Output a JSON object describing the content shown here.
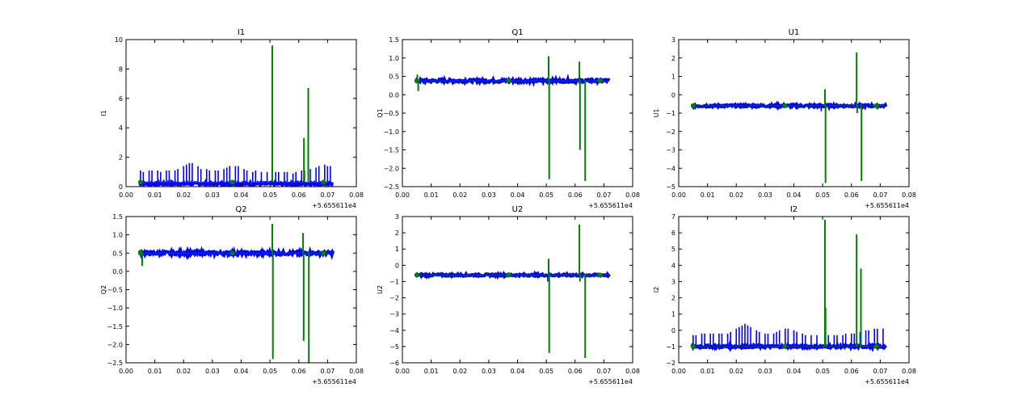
{
  "figure": {
    "background": "#ffffff",
    "blue": "#0000ff",
    "green": "#008000"
  },
  "chart_data": [
    {
      "type": "line",
      "title": "I1",
      "ylabel": "I1",
      "xlabel": "",
      "x_offset_label": "+5.655611e4",
      "xlim": [
        0.0,
        0.08
      ],
      "ylim": [
        0,
        10
      ],
      "xticks": [
        "0.00",
        "0.01",
        "0.02",
        "0.03",
        "0.04",
        "0.05",
        "0.06",
        "0.07",
        "0.08"
      ],
      "yticks": [
        "0",
        "2",
        "4",
        "6",
        "8",
        "10"
      ],
      "series": [
        {
          "color": "#0000ff",
          "x": [
            0.0045,
            0.072
          ],
          "y": [
            0.2,
            0.3
          ],
          "spikes": [
            [
              0.005,
              1.1
            ],
            [
              0.006,
              1.0
            ],
            [
              0.008,
              1.1
            ],
            [
              0.009,
              1.1
            ],
            [
              0.011,
              1.1
            ],
            [
              0.012,
              1.0
            ],
            [
              0.014,
              1.1
            ],
            [
              0.015,
              1.1
            ],
            [
              0.017,
              1.1
            ],
            [
              0.018,
              1.2
            ],
            [
              0.02,
              1.4
            ],
            [
              0.021,
              1.5
            ],
            [
              0.022,
              1.6
            ],
            [
              0.023,
              1.6
            ],
            [
              0.025,
              1.4
            ],
            [
              0.026,
              1.2
            ],
            [
              0.028,
              1.2
            ],
            [
              0.029,
              1.1
            ],
            [
              0.031,
              1.1
            ],
            [
              0.032,
              1.1
            ],
            [
              0.034,
              1.2
            ],
            [
              0.035,
              1.3
            ],
            [
              0.036,
              1.4
            ],
            [
              0.038,
              1.4
            ],
            [
              0.039,
              1.4
            ],
            [
              0.041,
              1.2
            ],
            [
              0.042,
              1.1
            ],
            [
              0.044,
              1.0
            ],
            [
              0.045,
              1.1
            ],
            [
              0.047,
              1.0
            ],
            [
              0.049,
              1.0
            ],
            [
              0.052,
              1.0
            ],
            [
              0.053,
              1.0
            ],
            [
              0.055,
              1.0
            ],
            [
              0.056,
              1.0
            ],
            [
              0.058,
              0.9
            ],
            [
              0.059,
              1.0
            ],
            [
              0.061,
              1.1
            ],
            [
              0.062,
              1.1
            ],
            [
              0.064,
              1.2
            ],
            [
              0.066,
              1.3
            ],
            [
              0.067,
              1.4
            ],
            [
              0.069,
              1.5
            ],
            [
              0.07,
              1.4
            ],
            [
              0.071,
              1.4
            ]
          ]
        },
        {
          "color": "#008000",
          "x": [
            0.0045,
            0.072
          ],
          "y": [
            0.3,
            0.3
          ],
          "spikes": [
            [
              0.0508,
              9.6
            ],
            [
              0.0618,
              3.3
            ],
            [
              0.0633,
              6.7
            ]
          ]
        }
      ]
    },
    {
      "type": "line",
      "title": "Q1",
      "ylabel": "Q1",
      "xlabel": "",
      "x_offset_label": "+5.655611e4",
      "xlim": [
        0.0,
        0.08
      ],
      "ylim": [
        -2.5,
        1.5
      ],
      "xticks": [
        "0.00",
        "0.01",
        "0.02",
        "0.03",
        "0.04",
        "0.05",
        "0.06",
        "0.07",
        "0.08"
      ],
      "yticks": [
        "−2.5",
        "−2.0",
        "−1.5",
        "−1.0",
        "−0.5",
        "0.0",
        "0.5",
        "1.0",
        "1.5"
      ],
      "series": [
        {
          "color": "#0000ff",
          "x": [
            0.0045,
            0.072
          ],
          "y": [
            0.38,
            0.38
          ],
          "band": 0.08,
          "spikes": []
        },
        {
          "color": "#008000",
          "x": [
            0.0045,
            0.072
          ],
          "y": [
            0.38,
            0.38
          ],
          "spikes": [
            [
              0.0052,
              0.55
            ],
            [
              0.0055,
              0.1
            ],
            [
              0.0508,
              1.05
            ],
            [
              0.051,
              -2.3
            ],
            [
              0.0615,
              0.9
            ],
            [
              0.0617,
              -1.5
            ],
            [
              0.0633,
              0.4
            ],
            [
              0.0635,
              -2.35
            ]
          ]
        }
      ]
    },
    {
      "type": "line",
      "title": "U1",
      "ylabel": "U1",
      "xlabel": "",
      "x_offset_label": "+5.655611e4",
      "xlim": [
        0.0,
        0.08
      ],
      "ylim": [
        -5,
        3
      ],
      "xticks": [
        "0.00",
        "0.01",
        "0.02",
        "0.03",
        "0.04",
        "0.05",
        "0.06",
        "0.07",
        "0.08"
      ],
      "yticks": [
        "−5",
        "−4",
        "−3",
        "−2",
        "−1",
        "0",
        "1",
        "2",
        "3"
      ],
      "series": [
        {
          "color": "#0000ff",
          "x": [
            0.0045,
            0.072
          ],
          "y": [
            -0.6,
            -0.6
          ],
          "band": 0.12,
          "spikes": [
            [
              0.0495,
              -0.9
            ]
          ]
        },
        {
          "color": "#008000",
          "x": [
            0.0045,
            0.072
          ],
          "y": [
            -0.6,
            -0.6
          ],
          "spikes": [
            [
              0.0508,
              0.3
            ],
            [
              0.051,
              -4.8
            ],
            [
              0.0618,
              2.3
            ],
            [
              0.062,
              -1.0
            ],
            [
              0.0633,
              -0.5
            ],
            [
              0.0635,
              -4.7
            ]
          ]
        }
      ]
    },
    {
      "type": "line",
      "title": "Q2",
      "ylabel": "Q2",
      "xlabel": "",
      "x_offset_label": "+5.655611e4",
      "xlim": [
        0.0,
        0.08
      ],
      "ylim": [
        -2.5,
        1.5
      ],
      "xticks": [
        "0.00",
        "0.01",
        "0.02",
        "0.03",
        "0.04",
        "0.05",
        "0.06",
        "0.07",
        "0.08"
      ],
      "yticks": [
        "−2.5",
        "−2.0",
        "−1.5",
        "−1.0",
        "−0.5",
        "0.0",
        "0.5",
        "1.0",
        "1.5"
      ],
      "series": [
        {
          "color": "#0000ff",
          "x": [
            0.0045,
            0.072
          ],
          "y": [
            0.5,
            0.5
          ],
          "band": 0.09,
          "spikes": []
        },
        {
          "color": "#008000",
          "x": [
            0.0045,
            0.072
          ],
          "y": [
            0.5,
            0.5
          ],
          "spikes": [
            [
              0.0053,
              0.6
            ],
            [
              0.0056,
              0.15
            ],
            [
              0.0508,
              1.3
            ],
            [
              0.051,
              -2.4
            ],
            [
              0.0615,
              1.05
            ],
            [
              0.0617,
              -1.9
            ],
            [
              0.0633,
              0.55
            ],
            [
              0.0635,
              -2.5
            ]
          ]
        }
      ]
    },
    {
      "type": "line",
      "title": "U2",
      "ylabel": "U2",
      "xlabel": "",
      "x_offset_label": "+5.655611e4",
      "xlim": [
        0.0,
        0.08
      ],
      "ylim": [
        -6,
        3
      ],
      "xticks": [
        "0.00",
        "0.01",
        "0.02",
        "0.03",
        "0.04",
        "0.05",
        "0.06",
        "0.07",
        "0.08"
      ],
      "yticks": [
        "−6",
        "−5",
        "−4",
        "−3",
        "−2",
        "−1",
        "0",
        "1",
        "2",
        "3"
      ],
      "series": [
        {
          "color": "#0000ff",
          "x": [
            0.0045,
            0.072
          ],
          "y": [
            -0.6,
            -0.6
          ],
          "band": 0.12,
          "spikes": [
            [
              0.0505,
              -1.0
            ]
          ]
        },
        {
          "color": "#008000",
          "x": [
            0.0045,
            0.072
          ],
          "y": [
            -0.6,
            -0.6
          ],
          "spikes": [
            [
              0.0508,
              0.4
            ],
            [
              0.051,
              -5.4
            ],
            [
              0.0615,
              2.5
            ],
            [
              0.0617,
              -1.0
            ],
            [
              0.0633,
              -0.5
            ],
            [
              0.0635,
              -5.7
            ]
          ]
        }
      ]
    },
    {
      "type": "line",
      "title": "I2",
      "ylabel": "I2",
      "xlabel": "",
      "x_offset_label": "+5.655611e4",
      "xlim": [
        0.0,
        0.08
      ],
      "ylim": [
        -2,
        7
      ],
      "xticks": [
        "0.00",
        "0.01",
        "0.02",
        "0.03",
        "0.04",
        "0.05",
        "0.06",
        "0.07",
        "0.08"
      ],
      "yticks": [
        "−2",
        "−1",
        "0",
        "1",
        "2",
        "3",
        "4",
        "5",
        "6",
        "7"
      ],
      "series": [
        {
          "color": "#0000ff",
          "x": [
            0.0045,
            0.072
          ],
          "y": [
            -1.0,
            -1.0
          ],
          "band": 0.14,
          "spikes": [
            [
              0.005,
              -0.3
            ],
            [
              0.006,
              -0.3
            ],
            [
              0.008,
              -0.2
            ],
            [
              0.009,
              -0.2
            ],
            [
              0.011,
              -0.2
            ],
            [
              0.012,
              -0.2
            ],
            [
              0.014,
              -0.2
            ],
            [
              0.015,
              -0.2
            ],
            [
              0.017,
              -0.2
            ],
            [
              0.018,
              -0.1
            ],
            [
              0.02,
              0.1
            ],
            [
              0.021,
              0.2
            ],
            [
              0.022,
              0.3
            ],
            [
              0.023,
              0.4
            ],
            [
              0.024,
              0.3
            ],
            [
              0.025,
              0.2
            ],
            [
              0.027,
              0.0
            ],
            [
              0.028,
              -0.1
            ],
            [
              0.03,
              -0.2
            ],
            [
              0.031,
              -0.2
            ],
            [
              0.033,
              -0.2
            ],
            [
              0.034,
              -0.1
            ],
            [
              0.035,
              0.0
            ],
            [
              0.037,
              0.1
            ],
            [
              0.038,
              0.1
            ],
            [
              0.04,
              0.0
            ],
            [
              0.041,
              -0.1
            ],
            [
              0.043,
              -0.2
            ],
            [
              0.044,
              -0.3
            ],
            [
              0.046,
              -0.3
            ],
            [
              0.048,
              -0.3
            ],
            [
              0.052,
              -0.3
            ],
            [
              0.054,
              -0.3
            ],
            [
              0.055,
              -0.3
            ],
            [
              0.057,
              -0.3
            ],
            [
              0.058,
              -0.2
            ],
            [
              0.06,
              -0.2
            ],
            [
              0.061,
              -0.2
            ],
            [
              0.063,
              -0.1
            ],
            [
              0.065,
              0.0
            ],
            [
              0.066,
              0.0
            ],
            [
              0.068,
              0.1
            ],
            [
              0.069,
              0.1
            ],
            [
              0.071,
              0.1
            ]
          ]
        },
        {
          "color": "#008000",
          "x": [
            0.0045,
            0.072
          ],
          "y": [
            -1.0,
            -1.0
          ],
          "spikes": [
            [
              0.0508,
              6.8
            ],
            [
              0.051,
              1.4
            ],
            [
              0.0618,
              5.9
            ],
            [
              0.0633,
              3.8
            ]
          ]
        }
      ]
    }
  ]
}
